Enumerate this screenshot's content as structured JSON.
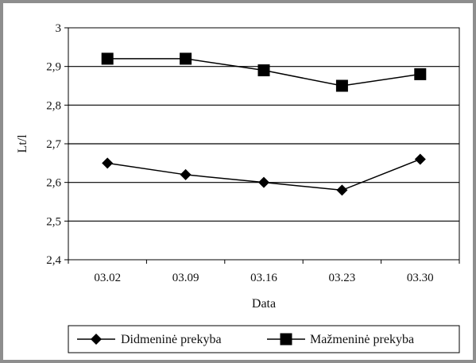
{
  "chart_data": {
    "type": "line",
    "categories": [
      "03.02",
      "03.09",
      "03.16",
      "03.23",
      "03.30"
    ],
    "xlabel": "Data",
    "ylabel": "Lt/l",
    "ylim": [
      2.4,
      3.0
    ],
    "yticks": [
      "2,4",
      "2,5",
      "2,6",
      "2,7",
      "2,8",
      "2,9",
      "3"
    ],
    "grid": true,
    "legend_position": "bottom",
    "series": [
      {
        "name": "Didmeninė prekyba",
        "marker": "diamond",
        "values": [
          2.65,
          2.62,
          2.6,
          2.58,
          2.66
        ],
        "color": "#000000"
      },
      {
        "name": "Mažmeninė prekyba",
        "marker": "square",
        "values": [
          2.92,
          2.92,
          2.89,
          2.85,
          2.88
        ],
        "color": "#000000"
      }
    ]
  },
  "colors": {
    "frame": "#8e8e8e",
    "line": "#000000"
  }
}
